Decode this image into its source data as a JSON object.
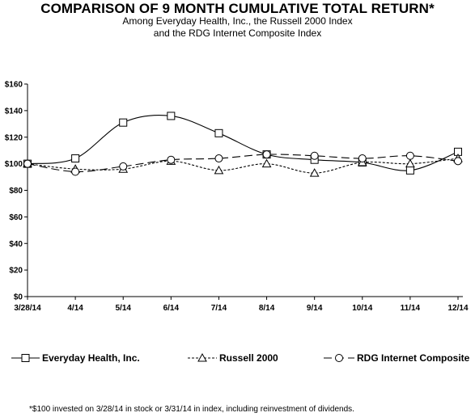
{
  "header": {
    "title": "COMPARISON OF 9 MONTH CUMULATIVE TOTAL RETURN*",
    "subtitle_line1": "Among Everyday Health, Inc., the Russell 2000 Index",
    "subtitle_line2": "and the RDG Internet Composite Index"
  },
  "footnote": "*$100 invested on 3/28/14 in stock or 3/31/14 in index, including reinvestment of dividends.",
  "chart_data": {
    "type": "line",
    "x": [
      "3/28/14",
      "4/14",
      "5/14",
      "6/14",
      "7/14",
      "8/14",
      "9/14",
      "10/14",
      "11/14",
      "12/14"
    ],
    "ylim": [
      0,
      160
    ],
    "yticks": [
      0,
      20,
      40,
      60,
      80,
      100,
      120,
      140,
      160
    ],
    "ytick_labels": [
      "$0",
      "$20",
      "$40",
      "$60",
      "$80",
      "$100",
      "$120",
      "$140",
      "$160"
    ],
    "grid": false,
    "legend_position": "bottom",
    "series": [
      {
        "name": "Everyday Health, Inc.",
        "marker": "square",
        "dash": "solid",
        "values": [
          100,
          104,
          131,
          136,
          123,
          107,
          103,
          101,
          95,
          109
        ]
      },
      {
        "name": "Russell 2000",
        "marker": "triangle",
        "dash": "dotted",
        "values": [
          100,
          96,
          96,
          102,
          95,
          100,
          93,
          101,
          100,
          104
        ]
      },
      {
        "name": "RDG Internet Composite",
        "marker": "circle",
        "dash": "dashed",
        "values": [
          100,
          94,
          98,
          103,
          104,
          107,
          106,
          104,
          106,
          102
        ]
      }
    ]
  }
}
